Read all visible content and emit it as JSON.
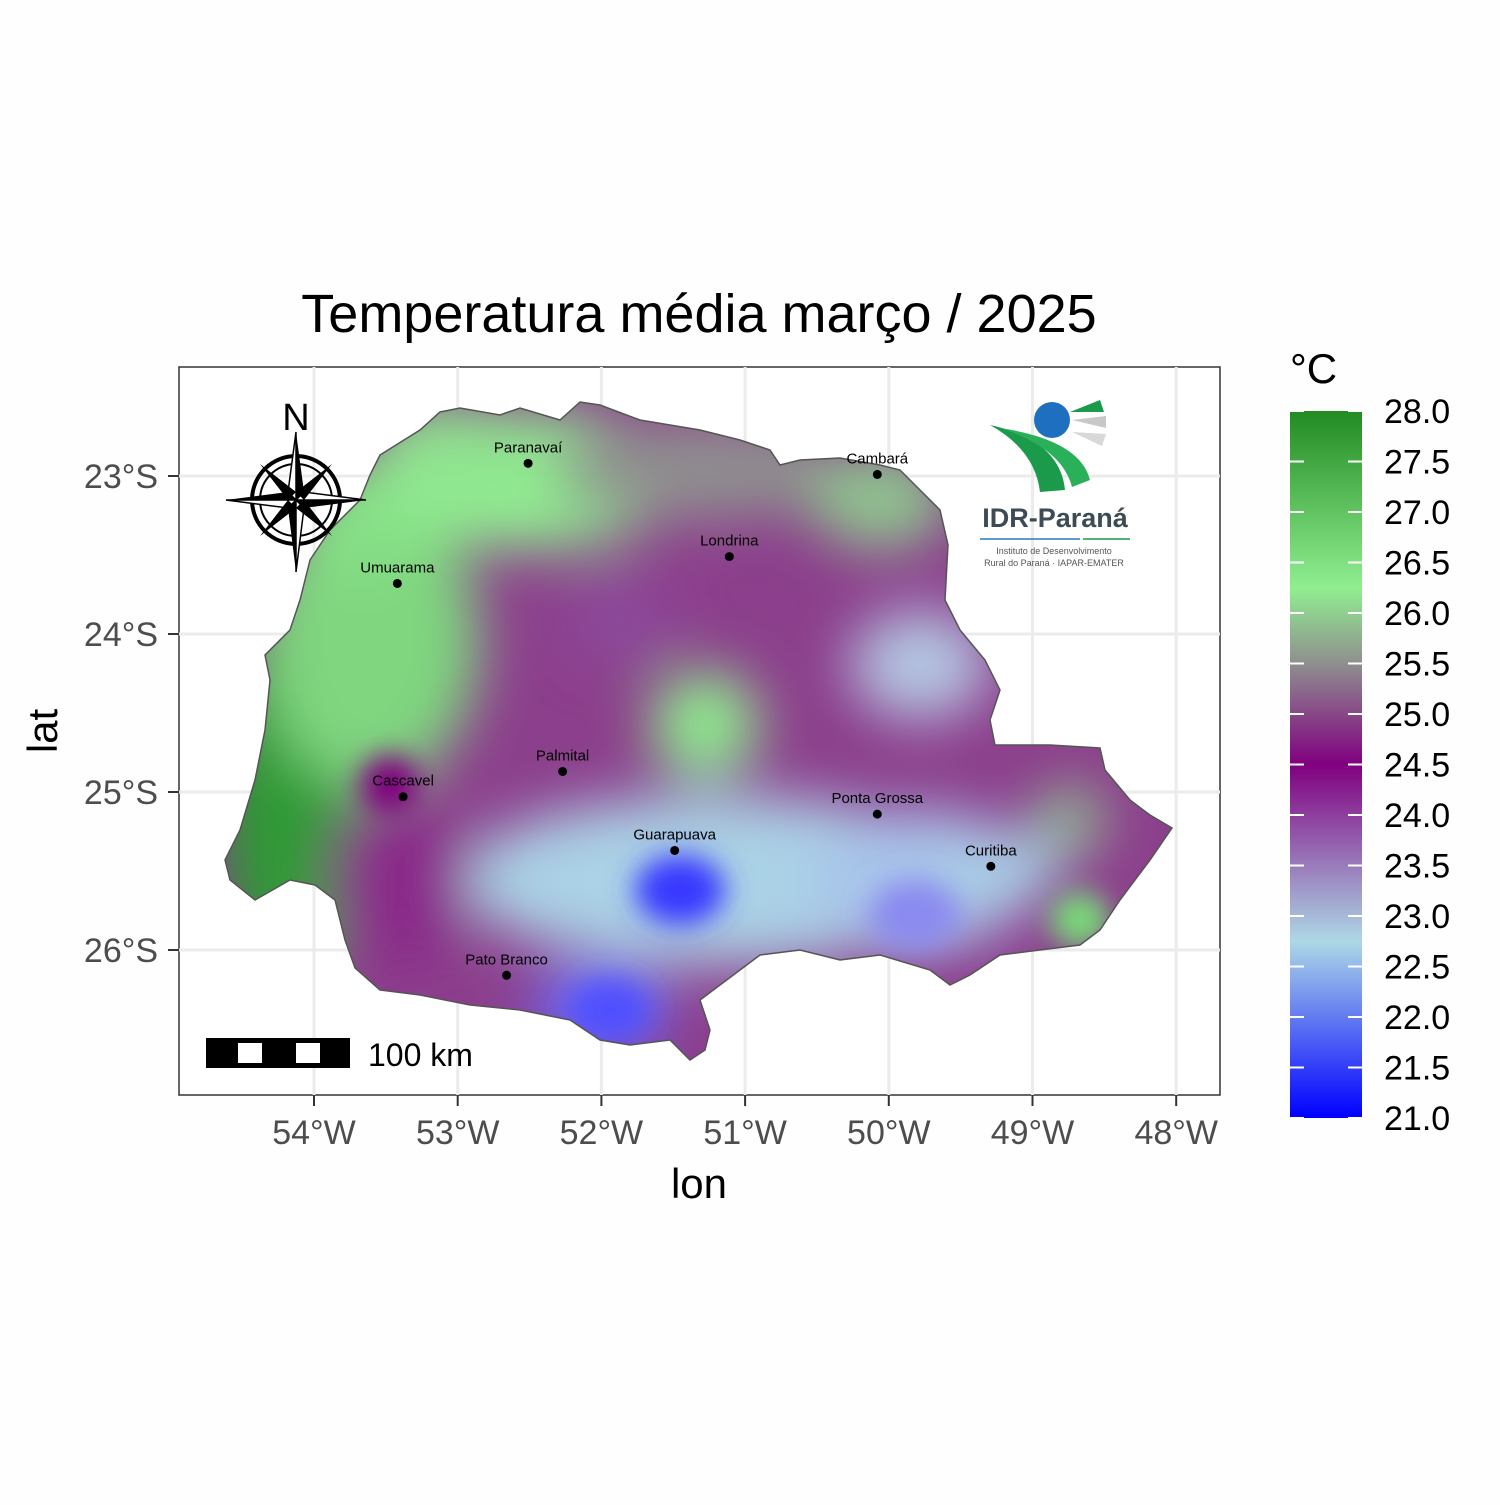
{
  "chart_data": {
    "type": "heatmap",
    "title": "Temperatura média março / 2025",
    "xlabel": "lon",
    "ylabel": "lat",
    "xlim": [
      -55,
      -47.8
    ],
    "ylim": [
      -26.9,
      -22.4
    ],
    "x_ticks": [
      {
        "value": -54,
        "label": "54°W"
      },
      {
        "value": -53,
        "label": "53°W"
      },
      {
        "value": -52,
        "label": "52°W"
      },
      {
        "value": -51,
        "label": "51°W"
      },
      {
        "value": -50,
        "label": "50°W"
      },
      {
        "value": -49,
        "label": "49°W"
      },
      {
        "value": -48,
        "label": "48°W"
      }
    ],
    "y_ticks": [
      {
        "value": -23,
        "label": "23°S"
      },
      {
        "value": -24,
        "label": "24°S"
      },
      {
        "value": -25,
        "label": "25°S"
      },
      {
        "value": -26,
        "label": "26°S"
      }
    ],
    "grid": true,
    "legend": {
      "title": "°C",
      "placement": "right",
      "range": [
        21.0,
        28.0
      ],
      "ticks": [
        "28.0",
        "27.5",
        "27.0",
        "26.5",
        "26.0",
        "25.5",
        "25.0",
        "24.5",
        "24.0",
        "23.5",
        "23.0",
        "22.5",
        "22.0",
        "21.5",
        "21.0"
      ],
      "colorscale": [
        {
          "value": 21.0,
          "color": "#0000ff"
        },
        {
          "value": 22.75,
          "color": "#add8e6"
        },
        {
          "value": 24.5,
          "color": "#800080"
        },
        {
          "value": 25.5,
          "color": "#8f8f8f"
        },
        {
          "value": 26.25,
          "color": "#90ee90"
        },
        {
          "value": 28.0,
          "color": "#228b22"
        }
      ]
    },
    "cities": [
      {
        "name": "Paranavaí",
        "lon": -52.51,
        "lat": -22.92
      },
      {
        "name": "Cambará",
        "lon": -50.08,
        "lat": -22.99
      },
      {
        "name": "Londrina",
        "lon": -51.11,
        "lat": -23.51
      },
      {
        "name": "Umuarama",
        "lon": -53.42,
        "lat": -23.68
      },
      {
        "name": "Palmital",
        "lon": -52.27,
        "lat": -24.87
      },
      {
        "name": "Cascavel",
        "lon": -53.38,
        "lat": -25.03
      },
      {
        "name": "Ponta Grossa",
        "lon": -50.08,
        "lat": -25.14
      },
      {
        "name": "Guarapuava",
        "lon": -51.49,
        "lat": -25.37
      },
      {
        "name": "Curitiba",
        "lon": -49.29,
        "lat": -25.47
      },
      {
        "name": "Pato Branco",
        "lon": -52.66,
        "lat": -26.16
      }
    ],
    "scale_bar": "100 km",
    "north_arrow": "N"
  },
  "logo": {
    "name": "IDR-Paraná",
    "subtitle_line1": "Instituto de Desenvolvimento",
    "subtitle_line2": "Rural do Paraná · IAPAR-EMATER"
  }
}
